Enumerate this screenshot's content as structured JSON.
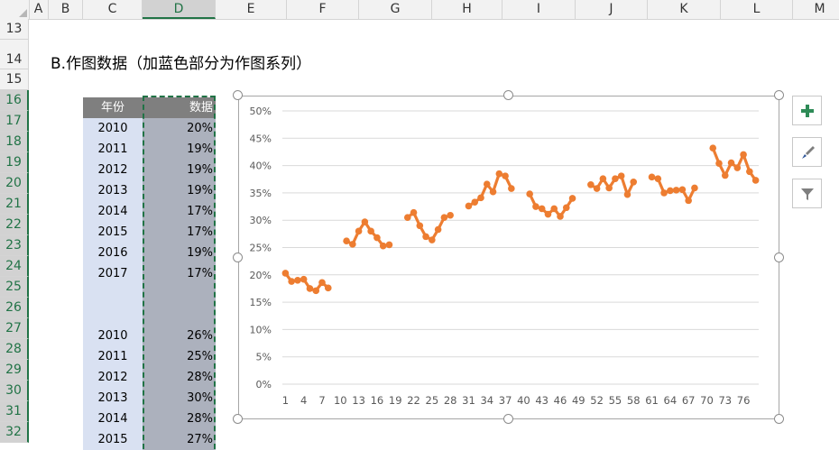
{
  "columns": [
    "A",
    "B",
    "C",
    "D",
    "E",
    "F",
    "G",
    "H",
    "I",
    "J",
    "K",
    "L",
    "M"
  ],
  "rows": [
    "13",
    "14",
    "15",
    "16",
    "17",
    "18",
    "19",
    "20",
    "21",
    "22",
    "23",
    "24",
    "25",
    "26",
    "27",
    "28",
    "29",
    "30",
    "31",
    "32"
  ],
  "title": "B.作图数据（加蓝色部分为作图系列）",
  "table": {
    "header_year": "年份",
    "header_value": "数据",
    "rows": [
      {
        "year": "2010",
        "value": "20%"
      },
      {
        "year": "2011",
        "value": "19%"
      },
      {
        "year": "2012",
        "value": "19%"
      },
      {
        "year": "2013",
        "value": "19%"
      },
      {
        "year": "2014",
        "value": "17%"
      },
      {
        "year": "2015",
        "value": "17%"
      },
      {
        "year": "2016",
        "value": "19%"
      },
      {
        "year": "2017",
        "value": "17%"
      },
      {
        "year": "",
        "value": ""
      },
      {
        "year": "",
        "value": ""
      },
      {
        "year": "2010",
        "value": "26%"
      },
      {
        "year": "2011",
        "value": "25%"
      },
      {
        "year": "2012",
        "value": "28%"
      },
      {
        "year": "2013",
        "value": "30%"
      },
      {
        "year": "2014",
        "value": "28%"
      },
      {
        "year": "2015",
        "value": "27%"
      }
    ]
  },
  "chart_buttons": [
    "chart-elements-icon",
    "chart-styles-icon",
    "chart-filters-icon"
  ],
  "chart_data": {
    "type": "line",
    "color": "#ED7D31",
    "yticks": [
      "50%",
      "45%",
      "40%",
      "35%",
      "30%",
      "25%",
      "20%",
      "15%",
      "10%",
      "5%",
      "0%"
    ],
    "ylim": [
      0,
      0.5
    ],
    "xticks": [
      "1",
      "4",
      "7",
      "10",
      "13",
      "16",
      "19",
      "22",
      "25",
      "28",
      "31",
      "34",
      "37",
      "40",
      "43",
      "46",
      "49",
      "52",
      "55",
      "58",
      "61",
      "64",
      "67",
      "70",
      "73",
      "76"
    ],
    "xcount": 78,
    "segments": [
      {
        "start": 1,
        "values": [
          0.203,
          0.188,
          0.19,
          0.192,
          0.175,
          0.171,
          0.186,
          0.176
        ]
      },
      {
        "start": 11,
        "values": [
          0.262,
          0.256,
          0.28,
          0.297,
          0.28,
          0.268,
          0.253,
          0.255
        ]
      },
      {
        "start": 21,
        "values": [
          0.305,
          0.314,
          0.29,
          0.27,
          0.264,
          0.283,
          0.305,
          0.309
        ]
      },
      {
        "start": 31,
        "values": [
          0.326,
          0.333,
          0.341,
          0.366,
          0.352,
          0.385,
          0.381,
          0.358
        ]
      },
      {
        "start": 41,
        "values": [
          0.348,
          0.325,
          0.321,
          0.311,
          0.321,
          0.307,
          0.323,
          0.34
        ]
      },
      {
        "start": 51,
        "values": [
          0.365,
          0.358,
          0.376,
          0.359,
          0.376,
          0.381,
          0.347,
          0.37
        ]
      },
      {
        "start": 61,
        "values": [
          0.379,
          0.376,
          0.35,
          0.354,
          0.355,
          0.356,
          0.336,
          0.359
        ]
      },
      {
        "start": 71,
        "values": [
          0.432,
          0.404,
          0.382,
          0.405,
          0.396,
          0.42,
          0.389,
          0.373
        ]
      }
    ]
  }
}
